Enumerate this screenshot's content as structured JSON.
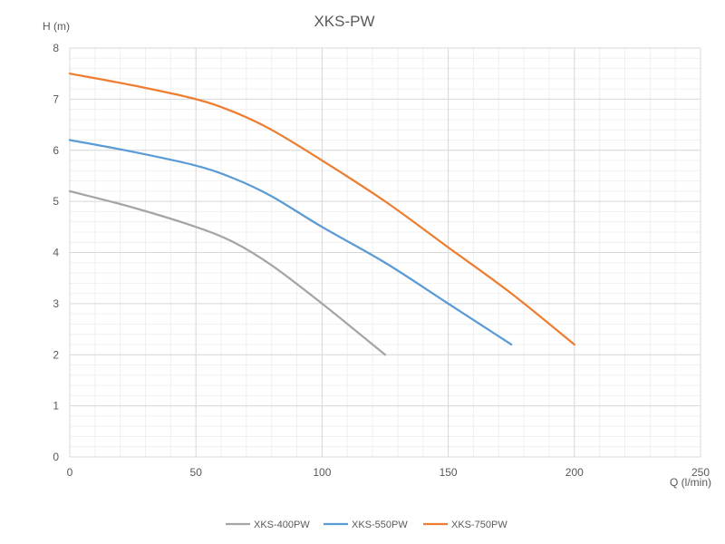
{
  "chart_data": {
    "type": "line",
    "title": "XKS-PW",
    "xlabel": "Q (l/min)",
    "ylabel": "H (m)",
    "xlim": [
      0,
      250
    ],
    "ylim": [
      0,
      8
    ],
    "xticks": [
      0,
      50,
      100,
      150,
      200,
      250
    ],
    "yticks": [
      0,
      1,
      2,
      3,
      4,
      5,
      6,
      7,
      8
    ],
    "grid": true,
    "minor_grid": true,
    "legend": "bottom",
    "series": [
      {
        "name": "XKS-400PW",
        "color": "#a5a5a5",
        "x": [
          0,
          25,
          50,
          65,
          80,
          100,
          125
        ],
        "y": [
          5.2,
          4.88,
          4.5,
          4.2,
          3.75,
          3.0,
          2.0
        ]
      },
      {
        "name": "XKS-550PW",
        "color": "#5b9bd5",
        "x": [
          0,
          25,
          50,
          65,
          80,
          100,
          125,
          150,
          175
        ],
        "y": [
          6.2,
          5.97,
          5.7,
          5.45,
          5.1,
          4.5,
          3.8,
          3.0,
          2.2
        ]
      },
      {
        "name": "XKS-750PW",
        "color": "#ed7d31",
        "x": [
          0,
          25,
          50,
          65,
          80,
          100,
          125,
          150,
          175,
          200
        ],
        "y": [
          7.5,
          7.27,
          7.0,
          6.75,
          6.4,
          5.8,
          5.0,
          4.1,
          3.2,
          2.2
        ]
      }
    ]
  }
}
